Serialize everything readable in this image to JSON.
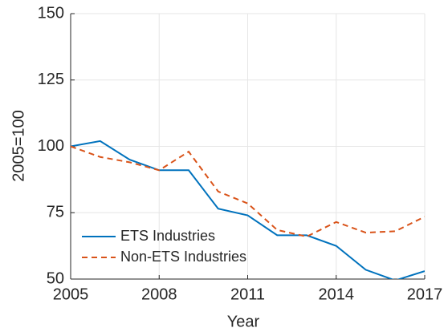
{
  "chart_data": {
    "type": "line",
    "x_label": "Year",
    "y_label": "2005=100",
    "x": [
      2005,
      2006,
      2007,
      2008,
      2009,
      2010,
      2011,
      2012,
      2013,
      2014,
      2015,
      2016,
      2017
    ],
    "series": [
      {
        "name": "ETS Industries",
        "color": "#0072bd",
        "line_style": "solid",
        "values": [
          100,
          102,
          95,
          91,
          91,
          76.5,
          74,
          66.5,
          66.5,
          62.5,
          53.5,
          49.5,
          53
        ]
      },
      {
        "name": "Non-ETS Industries",
        "color": "#d95319",
        "line_style": "dashed",
        "values": [
          100,
          96,
          94,
          91,
          98,
          83,
          78.5,
          68.5,
          66,
          71.5,
          67.5,
          68,
          73.5
        ]
      }
    ],
    "xlim": [
      2005,
      2017
    ],
    "xticks": [
      2005,
      2008,
      2011,
      2014,
      2017
    ],
    "ylim": [
      50,
      150
    ],
    "yticks": [
      50,
      75,
      100,
      125,
      150
    ],
    "grid": true,
    "legend": "lower left"
  }
}
